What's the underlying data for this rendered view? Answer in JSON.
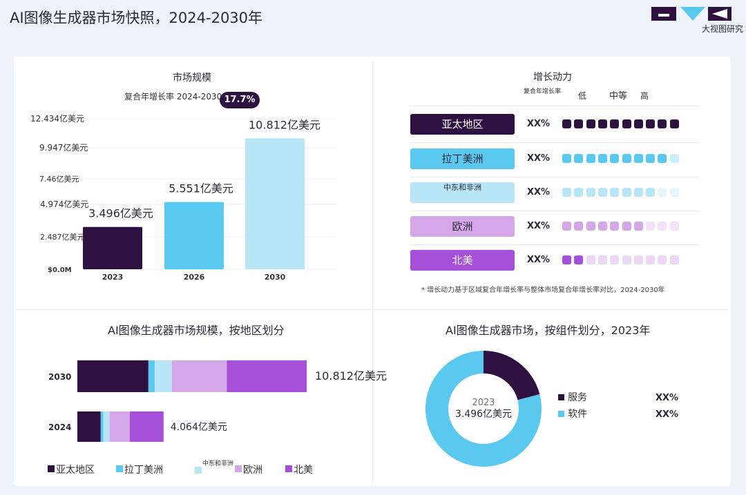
{
  "header": {
    "title": "AI图像生成器市场快照，2024-2030年",
    "logo_text": "大视图研究"
  },
  "colors": {
    "dark_purple": "#2e1140",
    "blue": "#5bc8f0",
    "light_blue": "#b8e6f7",
    "lavender": "#d4a8e8",
    "purple": "#a64fd8"
  },
  "market_size": {
    "title": "市场规模",
    "cagr_label": "复合年增长率 2024-2030",
    "cagr_value": "17.7%"
  },
  "growth": {
    "title": "增长动力",
    "cagr_label": "复合年增长率",
    "levels": [
      "低",
      "中等",
      "高"
    ],
    "note": "* 增长动力基于区域复合年增长率与整体市场复合年增长率对比，2024-2030年",
    "rows": [
      {
        "region": "亚太地区",
        "pct": "XX%",
        "level": 10,
        "color": "#2e1140",
        "faded": "#2e1140",
        "text_color": "#ffffff"
      },
      {
        "region": "拉丁美洲",
        "pct": "XX%",
        "level": 9,
        "color": "#5bc8f0",
        "faded": "#cdeefa",
        "text_color": "#2a2a3a"
      },
      {
        "region": "中东和非洲",
        "pct": "XX%",
        "level": 8,
        "color": "#b8e6f7",
        "faded": "#e8f6fc",
        "text_color": "#2a2a3a"
      },
      {
        "region": "欧洲",
        "pct": "XX%",
        "level": 7,
        "color": "#d4a8e8",
        "faded": "#f1e4f8",
        "text_color": "#2a2a3a"
      },
      {
        "region": "北美",
        "pct": "XX%",
        "level": 2,
        "color": "#a64fd8",
        "faded": "#ead8f6",
        "text_color": "#ffffff"
      }
    ]
  },
  "region_title": "AI图像生成器市场规模，按地区划分",
  "component_title": "AI图像生成器市场，按组件划分，2023年",
  "chart_data": [
    {
      "type": "bar",
      "title": "市场规模",
      "categories": [
        "2023",
        "2026",
        "2030"
      ],
      "values": [
        3.496,
        5.551,
        10.812
      ],
      "value_labels": [
        "3.496亿美元",
        "5.551亿美元",
        "10.812亿美元"
      ],
      "bar_colors": [
        "#2e1140",
        "#5bc8f0",
        "#b8e6f7"
      ],
      "yticks": [
        0,
        2.487,
        4.974,
        7.46,
        9.947,
        12.434
      ],
      "ytick_labels": [
        "$0.0M",
        "2.487亿美元",
        "4.974亿美元",
        "7.46亿美元",
        "9.947亿美元",
        "12.434亿美元"
      ],
      "ylim": [
        0,
        12.434
      ],
      "grid": true
    },
    {
      "type": "bar",
      "orientation": "horizontal",
      "stacked": true,
      "title": "AI图像生成器市场规模，按地区划分",
      "categories": [
        "2030",
        "2024"
      ],
      "totals": [
        10.812,
        4.064
      ],
      "total_labels": [
        "10.812亿美元",
        "4.064亿美元"
      ],
      "series": [
        {
          "name": "亚太地区",
          "color": "#2e1140",
          "values": [
            3.35,
            1.1
          ]
        },
        {
          "name": "拉丁美洲",
          "color": "#5bc8f0",
          "values": [
            0.3,
            0.12
          ]
        },
        {
          "name": "中东和非洲",
          "color": "#b8e6f7",
          "values": [
            0.8,
            0.3
          ]
        },
        {
          "name": "欧洲",
          "color": "#d4a8e8",
          "values": [
            2.6,
            0.95
          ]
        },
        {
          "name": "北美",
          "color": "#a64fd8",
          "values": [
            3.762,
            1.594
          ]
        }
      ]
    },
    {
      "type": "pie",
      "donut": true,
      "title": "AI图像生成器市场，按组件划分，2023年",
      "center_year": "2023",
      "center_value": "3.496亿美元",
      "slices": [
        {
          "name": "服务",
          "pct_label": "XX%",
          "value": 0.21,
          "color": "#2e1140"
        },
        {
          "name": "软件",
          "pct_label": "XX%",
          "value": 0.79,
          "color": "#5bc8f0"
        }
      ]
    }
  ]
}
